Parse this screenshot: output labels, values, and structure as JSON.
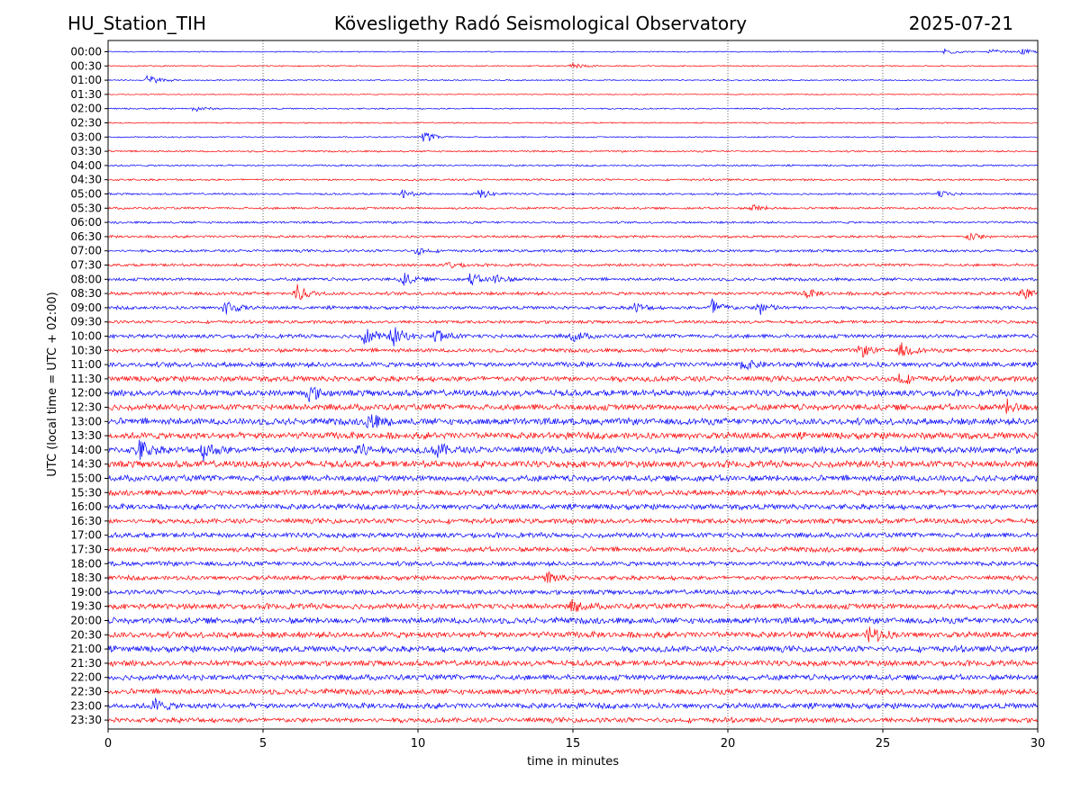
{
  "header": {
    "station": "HU_Station_TIH",
    "observatory": "Kövesligethy Radó Seismological Observatory",
    "date": "2025-07-21"
  },
  "chart_data": {
    "type": "line",
    "title": "Kövesligethy Radó Seismological Observatory",
    "xlabel": "time in minutes",
    "ylabel": "UTC (local time = UTC + 02:00)",
    "xlim": [
      0,
      30
    ],
    "x_ticks": [
      0,
      5,
      10,
      15,
      20,
      25,
      30
    ],
    "grid": "vertical dotted",
    "colors": {
      "even_rows": "#0000ff",
      "odd_rows": "#ff0000",
      "grid": "#000000"
    },
    "rows": [
      {
        "label": "00:00",
        "color": "#0000ff",
        "noise": 0.1,
        "events": [
          {
            "t": 27.0,
            "amp": 0.35
          },
          {
            "t": 28.5,
            "amp": 0.25
          },
          {
            "t": 29.5,
            "amp": 0.3
          }
        ]
      },
      {
        "label": "00:30",
        "color": "#ff0000",
        "noise": 0.12,
        "events": [
          {
            "t": 15.0,
            "amp": 0.3
          }
        ]
      },
      {
        "label": "01:00",
        "color": "#0000ff",
        "noise": 0.12,
        "events": [
          {
            "t": 1.3,
            "amp": 0.6
          }
        ]
      },
      {
        "label": "01:30",
        "color": "#ff0000",
        "noise": 0.09,
        "events": []
      },
      {
        "label": "02:00",
        "color": "#0000ff",
        "noise": 0.13,
        "events": [
          {
            "t": 2.8,
            "amp": 0.3
          }
        ]
      },
      {
        "label": "02:30",
        "color": "#ff0000",
        "noise": 0.12,
        "events": []
      },
      {
        "label": "03:00",
        "color": "#0000ff",
        "noise": 0.12,
        "events": [
          {
            "t": 10.2,
            "amp": 0.55
          }
        ]
      },
      {
        "label": "03:30",
        "color": "#ff0000",
        "noise": 0.16,
        "events": []
      },
      {
        "label": "04:00",
        "color": "#0000ff",
        "noise": 0.16,
        "events": []
      },
      {
        "label": "04:30",
        "color": "#ff0000",
        "noise": 0.18,
        "events": []
      },
      {
        "label": "05:00",
        "color": "#0000ff",
        "noise": 0.17,
        "events": [
          {
            "t": 9.5,
            "amp": 0.4
          },
          {
            "t": 12.0,
            "amp": 0.5
          },
          {
            "t": 26.8,
            "amp": 0.35
          }
        ]
      },
      {
        "label": "05:30",
        "color": "#ff0000",
        "noise": 0.2,
        "events": [
          {
            "t": 20.8,
            "amp": 0.35
          }
        ]
      },
      {
        "label": "06:00",
        "color": "#0000ff",
        "noise": 0.2,
        "events": []
      },
      {
        "label": "06:30",
        "color": "#ff0000",
        "noise": 0.22,
        "events": [
          {
            "t": 27.8,
            "amp": 0.45
          }
        ]
      },
      {
        "label": "07:00",
        "color": "#0000ff",
        "noise": 0.24,
        "events": [
          {
            "t": 10.0,
            "amp": 0.35
          }
        ]
      },
      {
        "label": "07:30",
        "color": "#ff0000",
        "noise": 0.25,
        "events": [
          {
            "t": 11.0,
            "amp": 0.35
          }
        ]
      },
      {
        "label": "08:00",
        "color": "#0000ff",
        "noise": 0.28,
        "events": [
          {
            "t": 9.5,
            "amp": 0.7
          },
          {
            "t": 11.7,
            "amp": 0.6
          },
          {
            "t": 12.5,
            "amp": 0.5
          }
        ]
      },
      {
        "label": "08:30",
        "color": "#ff0000",
        "noise": 0.3,
        "events": [
          {
            "t": 6.1,
            "amp": 0.85
          },
          {
            "t": 22.5,
            "amp": 0.45
          },
          {
            "t": 29.5,
            "amp": 0.6
          }
        ]
      },
      {
        "label": "09:00",
        "color": "#0000ff",
        "noise": 0.3,
        "events": [
          {
            "t": 3.8,
            "amp": 0.8
          },
          {
            "t": 17.0,
            "amp": 0.5
          },
          {
            "t": 19.5,
            "amp": 0.9
          },
          {
            "t": 21.0,
            "amp": 0.8
          }
        ]
      },
      {
        "label": "09:30",
        "color": "#ff0000",
        "noise": 0.28,
        "events": []
      },
      {
        "label": "10:00",
        "color": "#0000ff",
        "noise": 0.35,
        "events": [
          {
            "t": 8.3,
            "amp": 0.9
          },
          {
            "t": 9.2,
            "amp": 1.0
          },
          {
            "t": 10.6,
            "amp": 0.8
          },
          {
            "t": 15.0,
            "amp": 0.5
          }
        ]
      },
      {
        "label": "10:30",
        "color": "#ff0000",
        "noise": 0.35,
        "events": [
          {
            "t": 24.3,
            "amp": 0.6
          },
          {
            "t": 25.6,
            "amp": 0.7
          }
        ]
      },
      {
        "label": "11:00",
        "color": "#0000ff",
        "noise": 0.45,
        "events": [
          {
            "t": 20.5,
            "amp": 0.5
          }
        ]
      },
      {
        "label": "11:30",
        "color": "#ff0000",
        "noise": 0.5,
        "events": [
          {
            "t": 25.5,
            "amp": 0.6
          }
        ]
      },
      {
        "label": "12:00",
        "color": "#0000ff",
        "noise": 0.55,
        "events": [
          {
            "t": 6.5,
            "amp": 0.7
          }
        ]
      },
      {
        "label": "12:30",
        "color": "#ff0000",
        "noise": 0.55,
        "events": [
          {
            "t": 29.0,
            "amp": 0.6
          }
        ]
      },
      {
        "label": "13:00",
        "color": "#0000ff",
        "noise": 0.6,
        "events": [
          {
            "t": 8.4,
            "amp": 0.9
          }
        ]
      },
      {
        "label": "13:30",
        "color": "#ff0000",
        "noise": 0.6,
        "events": []
      },
      {
        "label": "14:00",
        "color": "#0000ff",
        "noise": 0.6,
        "events": [
          {
            "t": 1.0,
            "amp": 1.0
          },
          {
            "t": 3.1,
            "amp": 0.9
          },
          {
            "t": 8.0,
            "amp": 0.9
          },
          {
            "t": 10.6,
            "amp": 0.7
          }
        ]
      },
      {
        "label": "14:30",
        "color": "#ff0000",
        "noise": 0.6,
        "events": []
      },
      {
        "label": "15:00",
        "color": "#0000ff",
        "noise": 0.55,
        "events": []
      },
      {
        "label": "15:30",
        "color": "#ff0000",
        "noise": 0.5,
        "events": []
      },
      {
        "label": "16:00",
        "color": "#0000ff",
        "noise": 0.5,
        "events": []
      },
      {
        "label": "16:30",
        "color": "#ff0000",
        "noise": 0.45,
        "events": []
      },
      {
        "label": "17:00",
        "color": "#0000ff",
        "noise": 0.45,
        "events": []
      },
      {
        "label": "17:30",
        "color": "#ff0000",
        "noise": 0.45,
        "events": []
      },
      {
        "label": "18:00",
        "color": "#0000ff",
        "noise": 0.42,
        "events": []
      },
      {
        "label": "18:30",
        "color": "#ff0000",
        "noise": 0.4,
        "events": [
          {
            "t": 14.2,
            "amp": 0.6
          }
        ]
      },
      {
        "label": "19:00",
        "color": "#0000ff",
        "noise": 0.42,
        "events": []
      },
      {
        "label": "19:30",
        "color": "#ff0000",
        "noise": 0.5,
        "events": [
          {
            "t": 15.0,
            "amp": 0.5
          }
        ]
      },
      {
        "label": "20:00",
        "color": "#0000ff",
        "noise": 0.55,
        "events": []
      },
      {
        "label": "20:30",
        "color": "#ff0000",
        "noise": 0.55,
        "events": [
          {
            "t": 24.6,
            "amp": 0.9
          }
        ]
      },
      {
        "label": "21:00",
        "color": "#0000ff",
        "noise": 0.55,
        "events": []
      },
      {
        "label": "21:30",
        "color": "#ff0000",
        "noise": 0.5,
        "events": []
      },
      {
        "label": "22:00",
        "color": "#0000ff",
        "noise": 0.5,
        "events": []
      },
      {
        "label": "22:30",
        "color": "#ff0000",
        "noise": 0.5,
        "events": []
      },
      {
        "label": "23:00",
        "color": "#0000ff",
        "noise": 0.5,
        "events": [
          {
            "t": 1.5,
            "amp": 0.6
          }
        ]
      },
      {
        "label": "23:30",
        "color": "#ff0000",
        "noise": 0.45,
        "events": []
      }
    ]
  }
}
